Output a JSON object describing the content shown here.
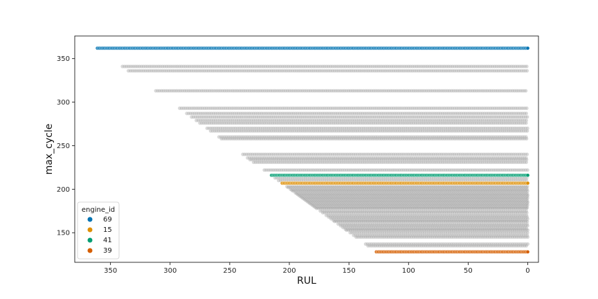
{
  "chart_data": {
    "type": "scatter",
    "title": "",
    "xlabel": "RUL",
    "ylabel": "max_cycle",
    "xlim": [
      380,
      -9
    ],
    "ylim": [
      116,
      376
    ],
    "x_inverted": true,
    "xticks": [
      350,
      300,
      250,
      200,
      150,
      100,
      50,
      0
    ],
    "yticks": [
      150,
      200,
      250,
      300,
      350
    ],
    "legend": {
      "title": "engine_id",
      "placement": "lower-left",
      "entries": [
        {
          "label": "69",
          "color": "#0173b2"
        },
        {
          "label": "15",
          "color": "#de8f05"
        },
        {
          "label": "41",
          "color": "#029e73"
        },
        {
          "label": "39",
          "color": "#d55e00"
        }
      ]
    },
    "background_series": {
      "color": "#a9a9a9",
      "opacity": 0.45,
      "note_max_cycles": [
        341,
        336,
        313,
        293,
        287,
        283,
        279,
        276,
        270,
        267,
        260,
        258,
        240,
        236,
        234,
        231,
        222,
        213,
        210,
        207,
        203,
        202,
        200,
        199,
        198,
        196,
        195,
        194,
        193,
        192,
        191,
        190,
        189,
        188,
        187,
        186,
        185,
        184,
        183,
        182,
        181,
        180,
        179,
        178,
        175,
        173,
        170,
        168,
        166,
        164,
        163,
        160,
        158,
        156,
        154,
        153,
        150,
        147,
        145,
        137,
        135
      ]
    },
    "series": [
      {
        "name": "69",
        "max_cycle": 362,
        "rul_range": [
          361,
          0
        ],
        "color": "#0173b2"
      },
      {
        "name": "15",
        "max_cycle": 207,
        "rul_range": [
          206,
          0
        ],
        "color": "#de8f05"
      },
      {
        "name": "41",
        "max_cycle": 216,
        "rul_range": [
          215,
          0
        ],
        "color": "#029e73"
      },
      {
        "name": "39",
        "max_cycle": 128,
        "rul_range": [
          127,
          0
        ],
        "color": "#d55e00"
      }
    ]
  }
}
